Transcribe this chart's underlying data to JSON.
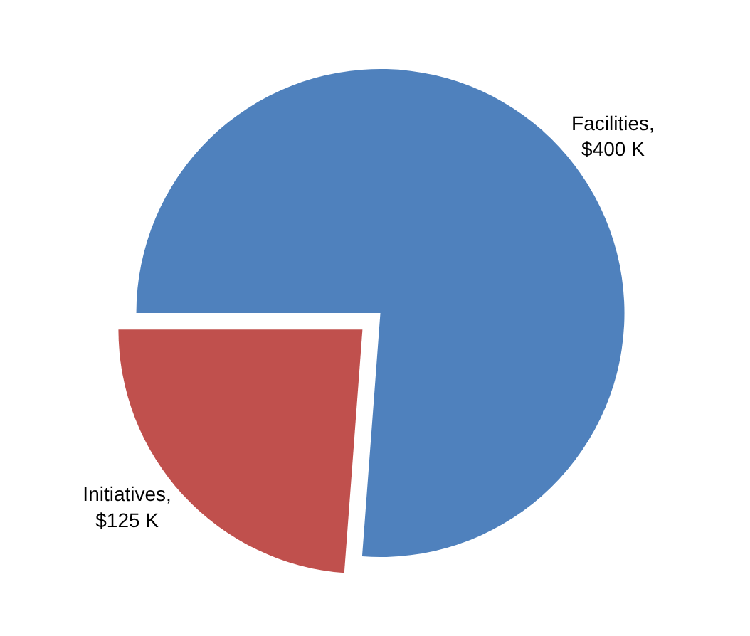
{
  "chart_data": {
    "type": "pie",
    "categories": [
      "Facilities",
      "Initiatives"
    ],
    "values": [
      400,
      125
    ],
    "colors": [
      "#4f81bd",
      "#c0504d"
    ],
    "value_labels": [
      ",\n$400 K",
      ",\n$125 K"
    ],
    "legend": false
  }
}
